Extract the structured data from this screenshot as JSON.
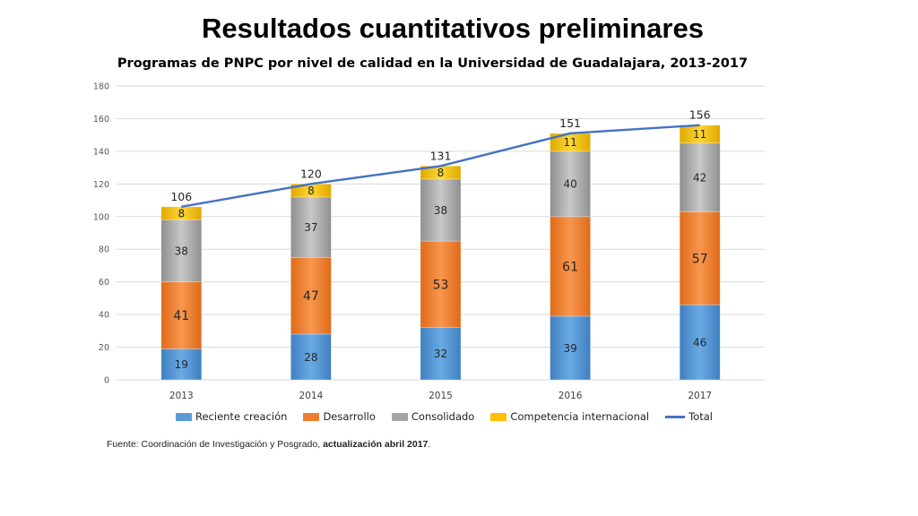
{
  "slide": {
    "title": "Resultados cuantitativos preliminares",
    "source_text": "Fuente: Coordinación de Investigación y Posgrado,",
    "source_bold": "actualización abril 2017",
    "source_end": "."
  },
  "chart_data": {
    "type": "bar",
    "stacked": true,
    "title": "Programas de PNPC por nivel de calidad en la Universidad de Guadalajara, 2013-2017",
    "xlabel": "",
    "ylabel": "",
    "categories": [
      "2013",
      "2014",
      "2015",
      "2016",
      "2017"
    ],
    "ylim": [
      0,
      180
    ],
    "yticks": [
      0,
      20,
      40,
      60,
      80,
      100,
      120,
      140,
      160,
      180
    ],
    "grid": true,
    "legend_position": "bottom",
    "series": [
      {
        "name": "Reciente creación",
        "values": [
          19,
          28,
          32,
          39,
          46
        ],
        "color": "#5b9bd5"
      },
      {
        "name": "Desarrollo",
        "values": [
          41,
          47,
          53,
          61,
          57
        ],
        "color": "#ed7d31"
      },
      {
        "name": "Consolidado",
        "values": [
          38,
          37,
          38,
          40,
          42
        ],
        "color": "#a5a5a5"
      },
      {
        "name": "Competencia internacional",
        "values": [
          8,
          8,
          8,
          11,
          11
        ],
        "color": "#ffc000"
      }
    ],
    "line_series": {
      "name": "Total",
      "type": "line",
      "values": [
        106,
        120,
        131,
        151,
        156
      ],
      "color": "#4472c4"
    }
  }
}
